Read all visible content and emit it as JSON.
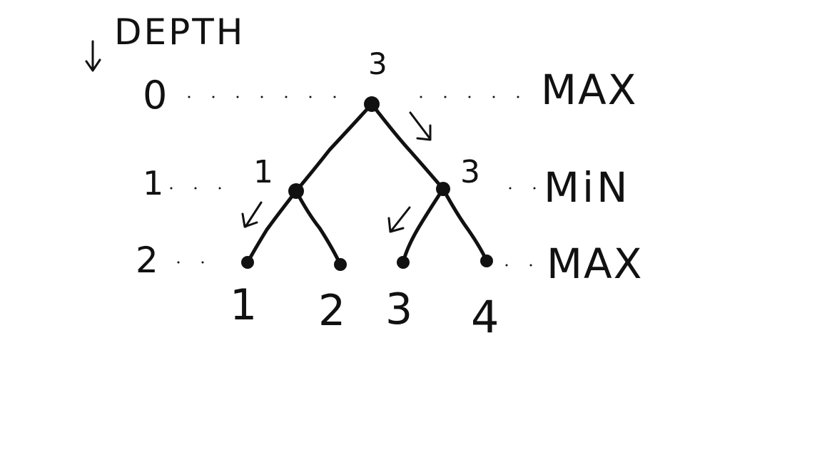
{
  "header": {
    "title": "DEPTH"
  },
  "depth_levels": [
    {
      "depth": "0",
      "role": "MAX"
    },
    {
      "depth": "1",
      "role": "MiN"
    },
    {
      "depth": "2",
      "role": "MAX"
    }
  ],
  "tree": {
    "root": {
      "value": "3"
    },
    "level1": [
      {
        "value": "1"
      },
      {
        "value": "3"
      }
    ],
    "leaves": [
      {
        "value": "1"
      },
      {
        "value": "2"
      },
      {
        "value": "3"
      },
      {
        "value": "4"
      }
    ]
  },
  "colors": {
    "ink": "#111111",
    "background": "#ffffff"
  },
  "icons": {
    "depth_arrow": "arrow-down-icon",
    "choice_arrow": "arrow-down-right-icon"
  }
}
